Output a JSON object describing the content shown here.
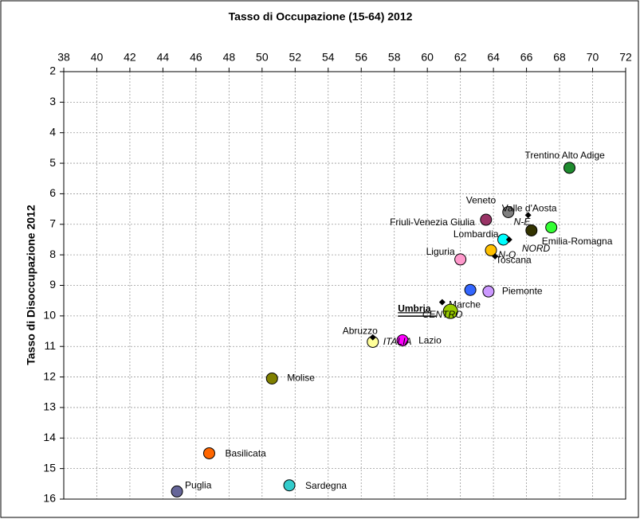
{
  "chart_data": {
    "type": "scatter",
    "title": "Tasso di Occupazione  (15-64) 2012",
    "ylabel": "Tasso di Disoccupazione 2012",
    "xlim": [
      38,
      72
    ],
    "ylim": [
      2,
      16
    ],
    "y_inverted": true,
    "x_axis_position": "top",
    "grid": true,
    "xticks": [
      38,
      40,
      42,
      44,
      46,
      48,
      50,
      52,
      54,
      56,
      58,
      60,
      62,
      64,
      66,
      68,
      70,
      72
    ],
    "yticks": [
      2,
      3,
      4,
      5,
      6,
      7,
      8,
      9,
      10,
      11,
      12,
      13,
      14,
      15,
      16
    ],
    "points": [
      {
        "label": "Trentino Alto Adige",
        "x": 68.6,
        "y": 5.15,
        "color": "#1e8b2e"
      },
      {
        "label": "Veneto",
        "x": 64.9,
        "y": 6.6,
        "color": "#808080"
      },
      {
        "label": "Valle d'Aosta",
        "x": 66.3,
        "y": 7.2,
        "color": "#333300"
      },
      {
        "label": "Friuli-Venezia Giulia",
        "x": 63.55,
        "y": 6.85,
        "color": "#993366"
      },
      {
        "label": "Emilia-Romagna",
        "x": 67.5,
        "y": 7.1,
        "color": "#33ff33"
      },
      {
        "label": "Lombardia",
        "x": 64.6,
        "y": 7.5,
        "color": "#00ffff"
      },
      {
        "label": "Toscana",
        "x": 63.85,
        "y": 7.85,
        "color": "#ffc000"
      },
      {
        "label": "Liguria",
        "x": 62.0,
        "y": 8.15,
        "color": "#ff99cc"
      },
      {
        "label": "Piemonte",
        "x": 63.7,
        "y": 9.2,
        "color": "#cc99ff"
      },
      {
        "label": "Marche",
        "x": 62.6,
        "y": 9.15,
        "color": "#3366ff"
      },
      {
        "label": "Umbria",
        "x": 61.4,
        "y": 9.85,
        "color": "#99cc00"
      },
      {
        "label": "Lazio",
        "x": 58.5,
        "y": 10.8,
        "color": "#ff00ff"
      },
      {
        "label": "Abruzzo",
        "x": 56.7,
        "y": 10.85,
        "color": "#ffff99"
      },
      {
        "label": "Molise",
        "x": 50.6,
        "y": 12.05,
        "color": "#808000"
      },
      {
        "label": "Basilicata",
        "x": 46.8,
        "y": 14.5,
        "color": "#ff6600"
      },
      {
        "label": "Puglia",
        "x": 44.85,
        "y": 15.75,
        "color": "#666699"
      },
      {
        "label": "Sardegna",
        "x": 51.65,
        "y": 15.55,
        "color": "#33cccc"
      }
    ],
    "aggregates": [
      {
        "label": "N-E",
        "x": 66.1,
        "y": 6.7
      },
      {
        "label": "NORD",
        "x": 64.95,
        "y": 7.5
      },
      {
        "label": "N-O",
        "x": 64.1,
        "y": 8.05
      },
      {
        "label": "CENTRO",
        "x": 60.9,
        "y": 9.55
      },
      {
        "label": "ITALIA",
        "x": 56.7,
        "y": 10.7
      }
    ]
  }
}
